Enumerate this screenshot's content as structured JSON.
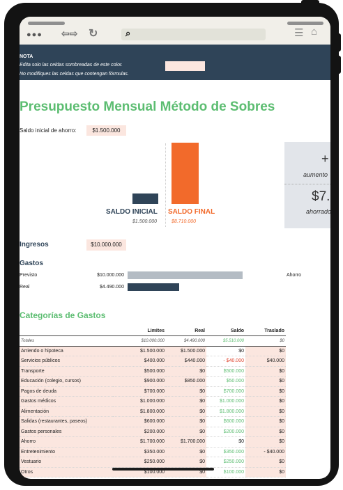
{
  "note": {
    "title": "NOTA",
    "line1": "Edita solo las celdas sombreadas de este color.",
    "line2": "No modifiques las celdas que contengan fórmulas."
  },
  "title": "Presupuesto Mensual Método de Sobres",
  "saldo": {
    "label": "Saldo inicial de ahorro:",
    "value": "$1.500.000"
  },
  "chart": {
    "saldo_inicial_label": "SALDO INICIAL",
    "saldo_inicial_value": "$1.500.000",
    "saldo_final_label": "SALDO FINAL",
    "saldo_final_value": "$8.710.000",
    "panel_plus": "+",
    "panel_aumento": "aumento",
    "panel_amount": "$7.",
    "panel_ahorro": "ahorrado"
  },
  "ingresos": {
    "label": "Ingresos",
    "value": "$10.000.000"
  },
  "gastos": {
    "label": "Gastos",
    "previsto_label": "Previsto",
    "previsto_value": "$10.000.000",
    "real_label": "Real",
    "real_value": "$4.490.000",
    "ahorro_label": "Ahorro"
  },
  "categorias": {
    "title": "Categorías de Gastos",
    "headers": [
      "",
      "Limites",
      "Real",
      "Saldo",
      "Traslado"
    ],
    "totals": [
      "Totales",
      "$10.000.000",
      "$4.490.000",
      "$5.510.000",
      "$0"
    ],
    "rows": [
      [
        "Arriendo o hipoteca",
        "$1.500.000",
        "$1.500.000",
        "$0",
        "$0"
      ],
      [
        "Servicios públicos",
        "$400.000",
        "$440.000",
        "- $40.000",
        "$40.000"
      ],
      [
        "Transporte",
        "$500.000",
        "$0",
        "$500.000",
        "$0"
      ],
      [
        "Educación (colegio, cursos)",
        "$900.000",
        "$850.000",
        "$50.000",
        "$0"
      ],
      [
        "Pagos de deuda",
        "$700.000",
        "$0",
        "$700.000",
        "$0"
      ],
      [
        "Gastos médicos",
        "$1.000.000",
        "$0",
        "$1.000.000",
        "$0"
      ],
      [
        "Alimentación",
        "$1.800.000",
        "$0",
        "$1.800.000",
        "$0"
      ],
      [
        "Salidas (restaurantes, paseos)",
        "$600.000",
        "$0",
        "$600.000",
        "$0"
      ],
      [
        "Gastos personales",
        "$200.000",
        "$0",
        "$200.000",
        "$0"
      ],
      [
        "Ahorro",
        "$1.700.000",
        "$1.700.000",
        "$0",
        "$0"
      ],
      [
        "Entretenimiento",
        "$350.000",
        "$0",
        "$350.000",
        "- $40.000"
      ],
      [
        "Vestuario",
        "$250.000",
        "$0",
        "$250.000",
        "$0"
      ],
      [
        "Otros",
        "$100.000",
        "$0",
        "$100.000",
        "$0"
      ]
    ]
  },
  "colors": {
    "accent_green": "#5cbd71",
    "navy": "#2f4458",
    "orange": "#f26a2b",
    "highlight": "#fbe6df"
  }
}
